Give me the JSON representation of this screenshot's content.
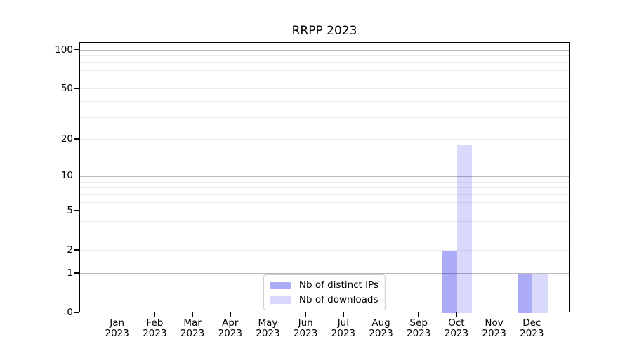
{
  "chart_data": {
    "type": "bar",
    "title": "RRPP 2023",
    "categories": [
      "Jan",
      "Feb",
      "Mar",
      "Apr",
      "May",
      "Jun",
      "Jul",
      "Aug",
      "Sep",
      "Oct",
      "Nov",
      "Dec"
    ],
    "category_year": "2023",
    "series": [
      {
        "name": "Nb of distinct IPs",
        "color": "#0000e8",
        "alpha": 0.33,
        "values": [
          0,
          0,
          0,
          0,
          0,
          0,
          0,
          0,
          0,
          2,
          0,
          1
        ]
      },
      {
        "name": "Nb of downloads",
        "color": "#0000e8",
        "alpha": 0.15,
        "values": [
          0,
          0,
          0,
          0,
          0,
          0,
          0,
          0,
          0,
          18,
          0,
          1
        ]
      }
    ],
    "y_axis": {
      "scale": "log1p",
      "tick_values": [
        0,
        1,
        2,
        5,
        10,
        20,
        50,
        100
      ],
      "major_gridlines": [
        1,
        10,
        100
      ],
      "minor_gridlines": [
        2,
        3,
        4,
        5,
        6,
        7,
        8,
        9,
        20,
        30,
        40,
        50,
        60,
        70,
        80,
        90
      ],
      "ylim": [
        0,
        114
      ]
    },
    "x_axis": {
      "tick_count": 12
    },
    "legend_position": "lower center",
    "grid": true
  },
  "colors": {
    "major_grid": "#b9b9b9",
    "minor_grid": "#ebebeb",
    "spine": "#000000",
    "text": "#000000",
    "background": "#ffffff",
    "legend_border": "#cccccc",
    "bar_distinct_ips_on_white": "#aaaaf8",
    "bar_downloads_on_white": "#d9d9f8"
  }
}
